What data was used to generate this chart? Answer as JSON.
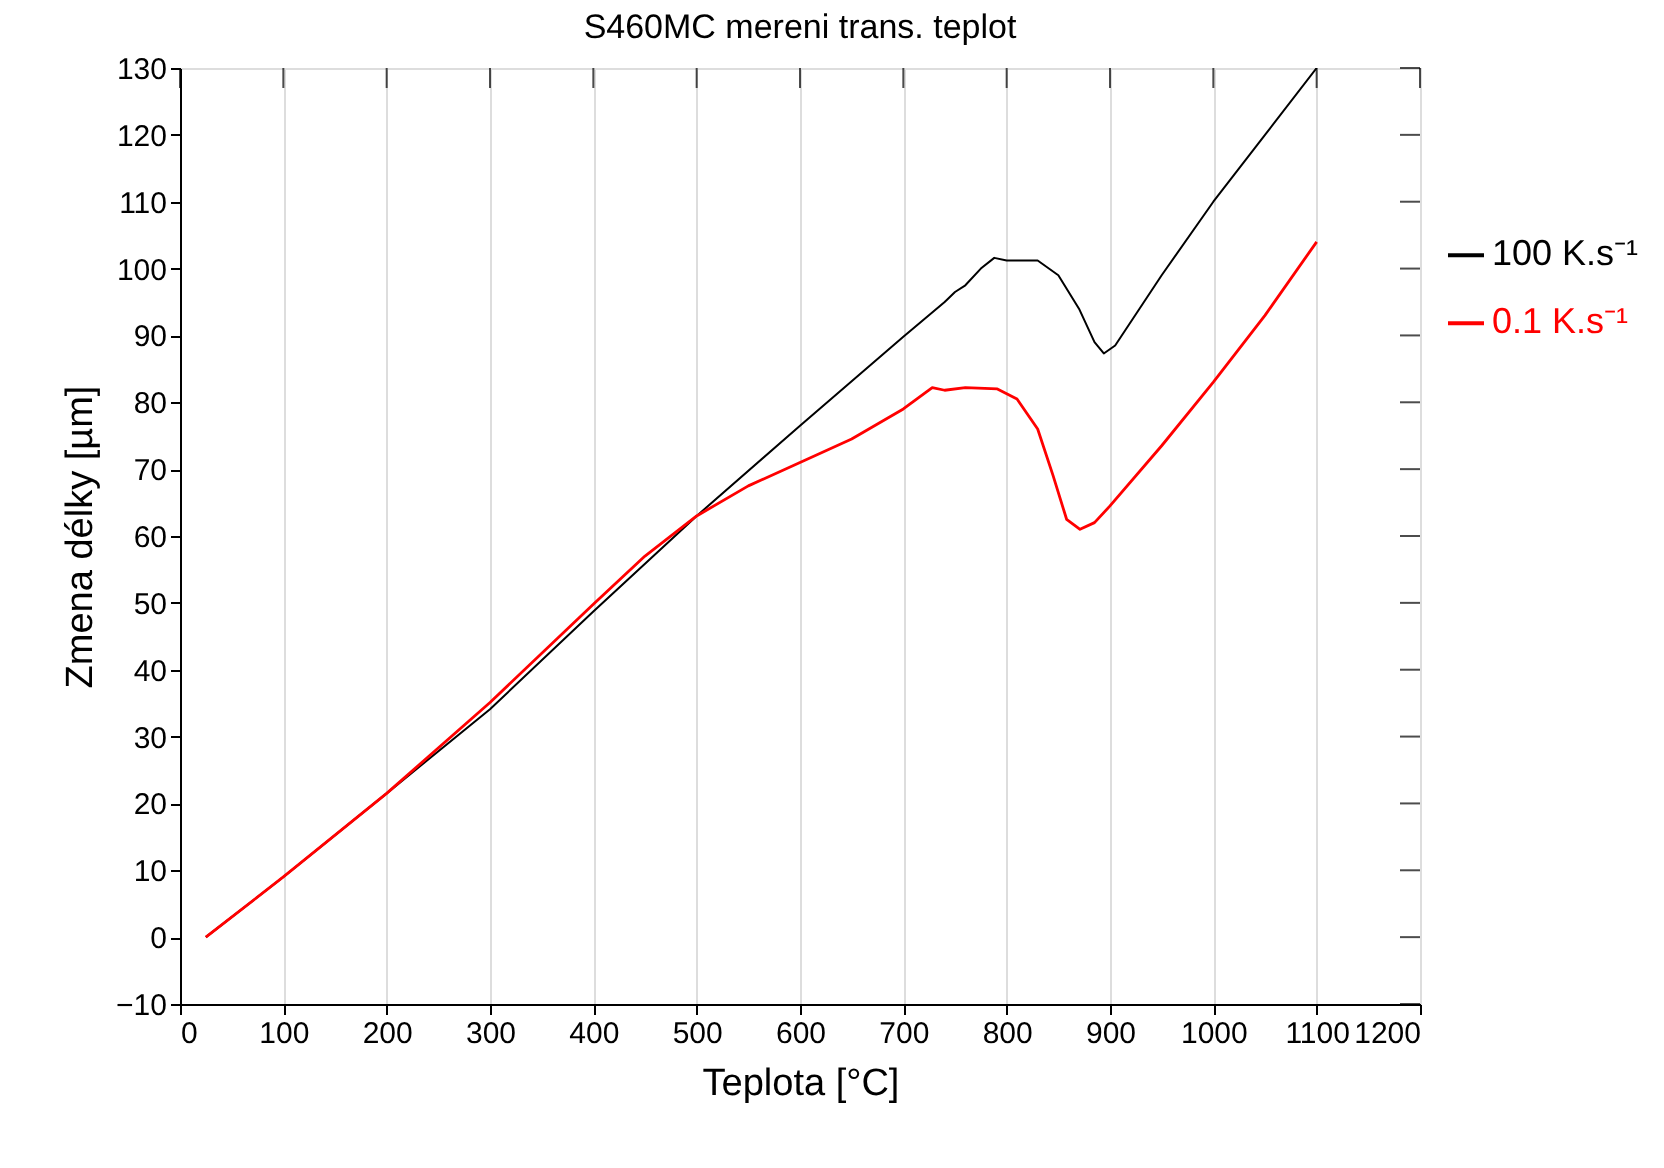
{
  "chart_data": {
    "type": "line",
    "title": "S460MC mereni trans. teplot",
    "xlabel": "Teplota [°C]",
    "ylabel": "Zmena délky [µm]",
    "xlim": [
      0,
      1200
    ],
    "xticks": [
      0,
      100,
      200,
      300,
      400,
      500,
      600,
      700,
      800,
      900,
      1000,
      1100,
      1200
    ],
    "ylim": [
      -10,
      130
    ],
    "yticks": [
      -10,
      0,
      10,
      20,
      30,
      40,
      50,
      60,
      70,
      80,
      90,
      100,
      110,
      120,
      130
    ],
    "grid": "x",
    "legend": "right",
    "line_style": "solid",
    "marker": "none",
    "series": [
      {
        "name": "100 K.s⁻¹",
        "color": "#000000",
        "x": [
          25,
          100,
          200,
          300,
          400,
          500,
          600,
          700,
          740,
          750,
          760,
          775,
          788,
          800,
          830,
          850,
          870,
          885,
          894,
          905,
          950,
          1000,
          1050,
          1100
        ],
        "values": [
          0,
          9,
          21.5,
          34.1,
          48.7,
          63,
          76.5,
          89.8,
          95,
          96.5,
          97.5,
          100,
          101.6,
          101.2,
          101.2,
          99,
          94,
          89,
          87.3,
          88.5,
          99,
          110,
          120,
          130
        ]
      },
      {
        "name": "0.1 K.s⁻¹",
        "color": "#ff0000",
        "x": [
          25,
          100,
          200,
          300,
          400,
          450,
          500,
          550,
          600,
          650,
          700,
          728,
          740,
          760,
          791,
          810,
          830,
          845,
          858,
          871,
          885,
          900,
          950,
          1000,
          1050,
          1100
        ],
        "values": [
          0,
          9,
          21.5,
          35.1,
          49.8,
          57,
          63,
          67.5,
          71,
          74.5,
          79,
          82.2,
          81.8,
          82.2,
          82,
          80.5,
          76,
          69,
          62.5,
          61,
          62,
          64.5,
          73.5,
          83,
          93,
          104
        ]
      }
    ]
  }
}
